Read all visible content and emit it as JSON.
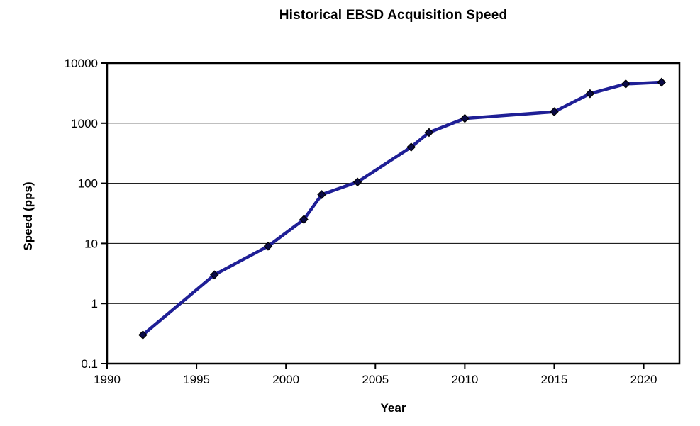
{
  "window": {
    "background_color": "#ffffff"
  },
  "chart_data": {
    "type": "line",
    "title": "Historical EBSD Acquisition Speed",
    "xlabel": "Year",
    "ylabel": "Speed (pps)",
    "x": [
      1992,
      1996,
      1999,
      2001,
      2002,
      2004,
      2007,
      2008,
      2010,
      2015,
      2017,
      2019,
      2021
    ],
    "series": [
      {
        "name": "EBSD acquisition speed",
        "values": [
          0.3,
          3,
          9,
          25,
          65,
          105,
          400,
          700,
          1200,
          1550,
          3100,
          4500,
          4800
        ]
      }
    ],
    "xlim": [
      1990,
      2022
    ],
    "ylim": [
      0.1,
      10000
    ],
    "y_scale": "log",
    "x_ticks": [
      1990,
      1995,
      2000,
      2005,
      2010,
      2015,
      2020
    ],
    "y_ticks": [
      0.1,
      1,
      10,
      100,
      1000,
      10000
    ],
    "y_tick_labels": [
      "0.1",
      "1",
      "10",
      "100",
      "1000",
      "10000"
    ],
    "grid": "horizontal-only",
    "legend_position": "none",
    "line_color": "#1F1F96",
    "marker_shape": "diamond",
    "marker_color": "#0A0A46",
    "marker_outline_color": "#000000",
    "axis_color": "#000000",
    "tick_label_color": "#000000"
  }
}
